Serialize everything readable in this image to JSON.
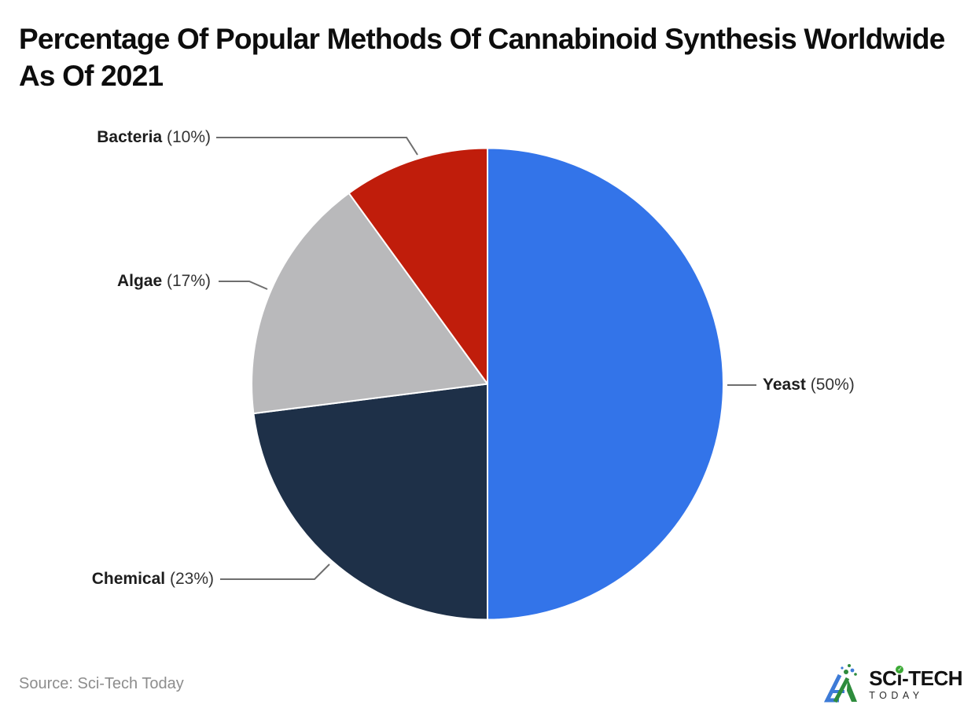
{
  "title": "Percentage Of Popular Methods Of Cannabinoid Synthesis Worldwide As Of 2021",
  "source": {
    "text": "Source: Sci-Tech Today"
  },
  "logo": {
    "name_prefix": "SC",
    "name_i": "i",
    "name_suffix": "-TECH",
    "subtitle": "TODAY",
    "check_icon_glyph": "✓",
    "colors": {
      "blue": "#3D7BD7",
      "green": "#2E8C3C",
      "check_green": "#3BA935"
    }
  },
  "chart_data": {
    "type": "pie",
    "title": "Percentage Of Popular Methods Of Cannabinoid Synthesis Worldwide As Of 2021",
    "unit": "%",
    "categories": [
      "Yeast",
      "Chemical",
      "Algae",
      "Bacteria"
    ],
    "values": [
      50,
      23,
      17,
      10
    ],
    "start_angle_deg": 0,
    "direction": "clockwise",
    "legend_position": "outside-callout-labels",
    "slices": [
      {
        "label": "Yeast",
        "value": 50,
        "pct_text": "(50%)",
        "color": "#3374E9"
      },
      {
        "label": "Chemical",
        "value": 23,
        "pct_text": "(23%)",
        "color": "#1E3048"
      },
      {
        "label": "Algae",
        "value": 17,
        "pct_text": "(17%)",
        "color": "#B9B9BB"
      },
      {
        "label": "Bacteria",
        "value": 10,
        "pct_text": "(10%)",
        "color": "#C01D0B"
      }
    ],
    "source": "Source: Sci-Tech Today"
  }
}
